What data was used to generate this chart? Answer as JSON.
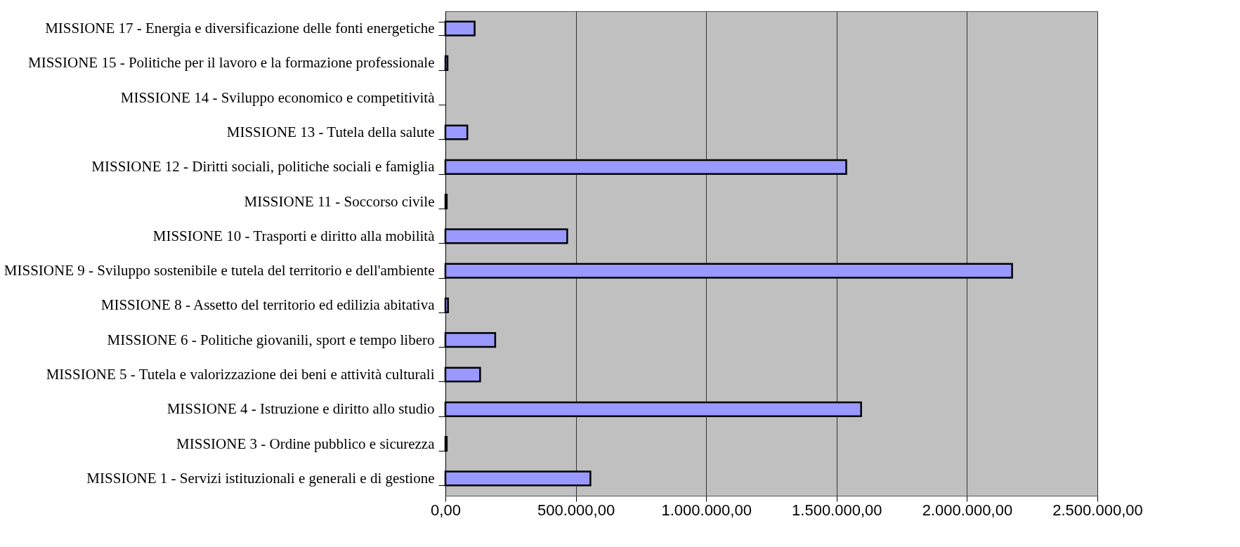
{
  "chart_data": {
    "type": "bar",
    "orientation": "horizontal",
    "categories": [
      "MISSIONE 17 - Energia e diversificazione delle fonti energetiche",
      "MISSIONE 15 - Politiche per il lavoro e la formazione professionale",
      "MISSIONE 14 - Sviluppo economico e competitività",
      "MISSIONE 13 - Tutela della salute",
      "MISSIONE 12 - Diritti sociali, politiche sociali e famiglia",
      "MISSIONE 11 - Soccorso civile",
      "MISSIONE 10 - Trasporti e diritto alla mobilità",
      "MISSIONE 9 - Sviluppo sostenibile e tutela del territorio e dell'ambiente",
      "MISSIONE 8 - Assetto del territorio ed edilizia abitativa",
      "MISSIONE 6 - Politiche giovanili, sport e tempo libero",
      "MISSIONE 5 - Tutela e valorizzazione dei beni e attività culturali",
      "MISSIONE 4 - Istruzione e diritto allo studio",
      "MISSIONE 3 - Ordine pubblico e sicurezza",
      "MISSIONE 1 - Servizi istituzionali e generali e di gestione"
    ],
    "values": [
      112000,
      8000,
      0,
      84000,
      1537000,
      5000,
      467000,
      2173000,
      10000,
      191000,
      133000,
      1594000,
      5000,
      556000
    ],
    "color": "#9999ff",
    "xlim": [
      0,
      2500000
    ],
    "xticks": [
      {
        "value": 0,
        "label": "0,00"
      },
      {
        "value": 500000,
        "label": "500.000,00"
      },
      {
        "value": 1000000,
        "label": "1.000.000,00"
      },
      {
        "value": 1500000,
        "label": "1.500.000,00"
      },
      {
        "value": 2000000,
        "label": "2.000.000,00"
      },
      {
        "value": 2500000,
        "label": "2.500.000,00"
      }
    ],
    "grid": "x"
  }
}
